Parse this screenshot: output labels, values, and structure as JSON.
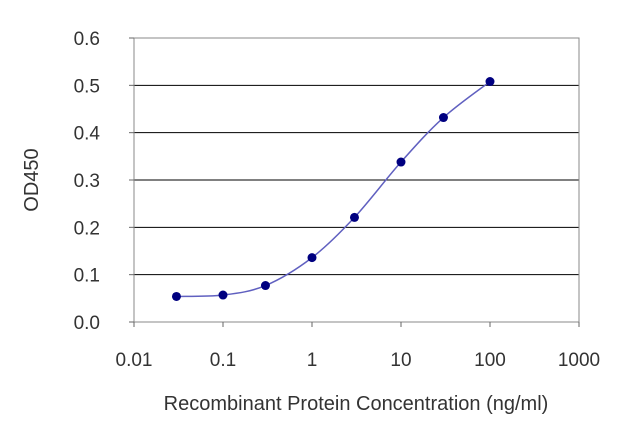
{
  "chart_data": {
    "type": "line",
    "title": "",
    "xlabel": "Recombinant Protein Concentration (ng/ml)",
    "ylabel": "OD450",
    "x_scale": "log",
    "xlim": [
      0.01,
      1000
    ],
    "ylim": [
      0.0,
      0.6
    ],
    "x_ticks": [
      "0.01",
      "0.1",
      "1",
      "10",
      "100",
      "1000"
    ],
    "y_ticks": [
      "0.0",
      "0.1",
      "0.2",
      "0.3",
      "0.4",
      "0.5",
      "0.6"
    ],
    "grid": "horizontal",
    "colors": {
      "line": "#6060c0",
      "marker": "#000080",
      "grid": "#000000"
    },
    "series": [
      {
        "x": [
          0.03,
          0.1,
          0.3,
          1,
          3,
          10,
          30,
          100
        ],
        "y": [
          0.054,
          0.057,
          0.077,
          0.136,
          0.221,
          0.338,
          0.432,
          0.508
        ]
      }
    ]
  }
}
